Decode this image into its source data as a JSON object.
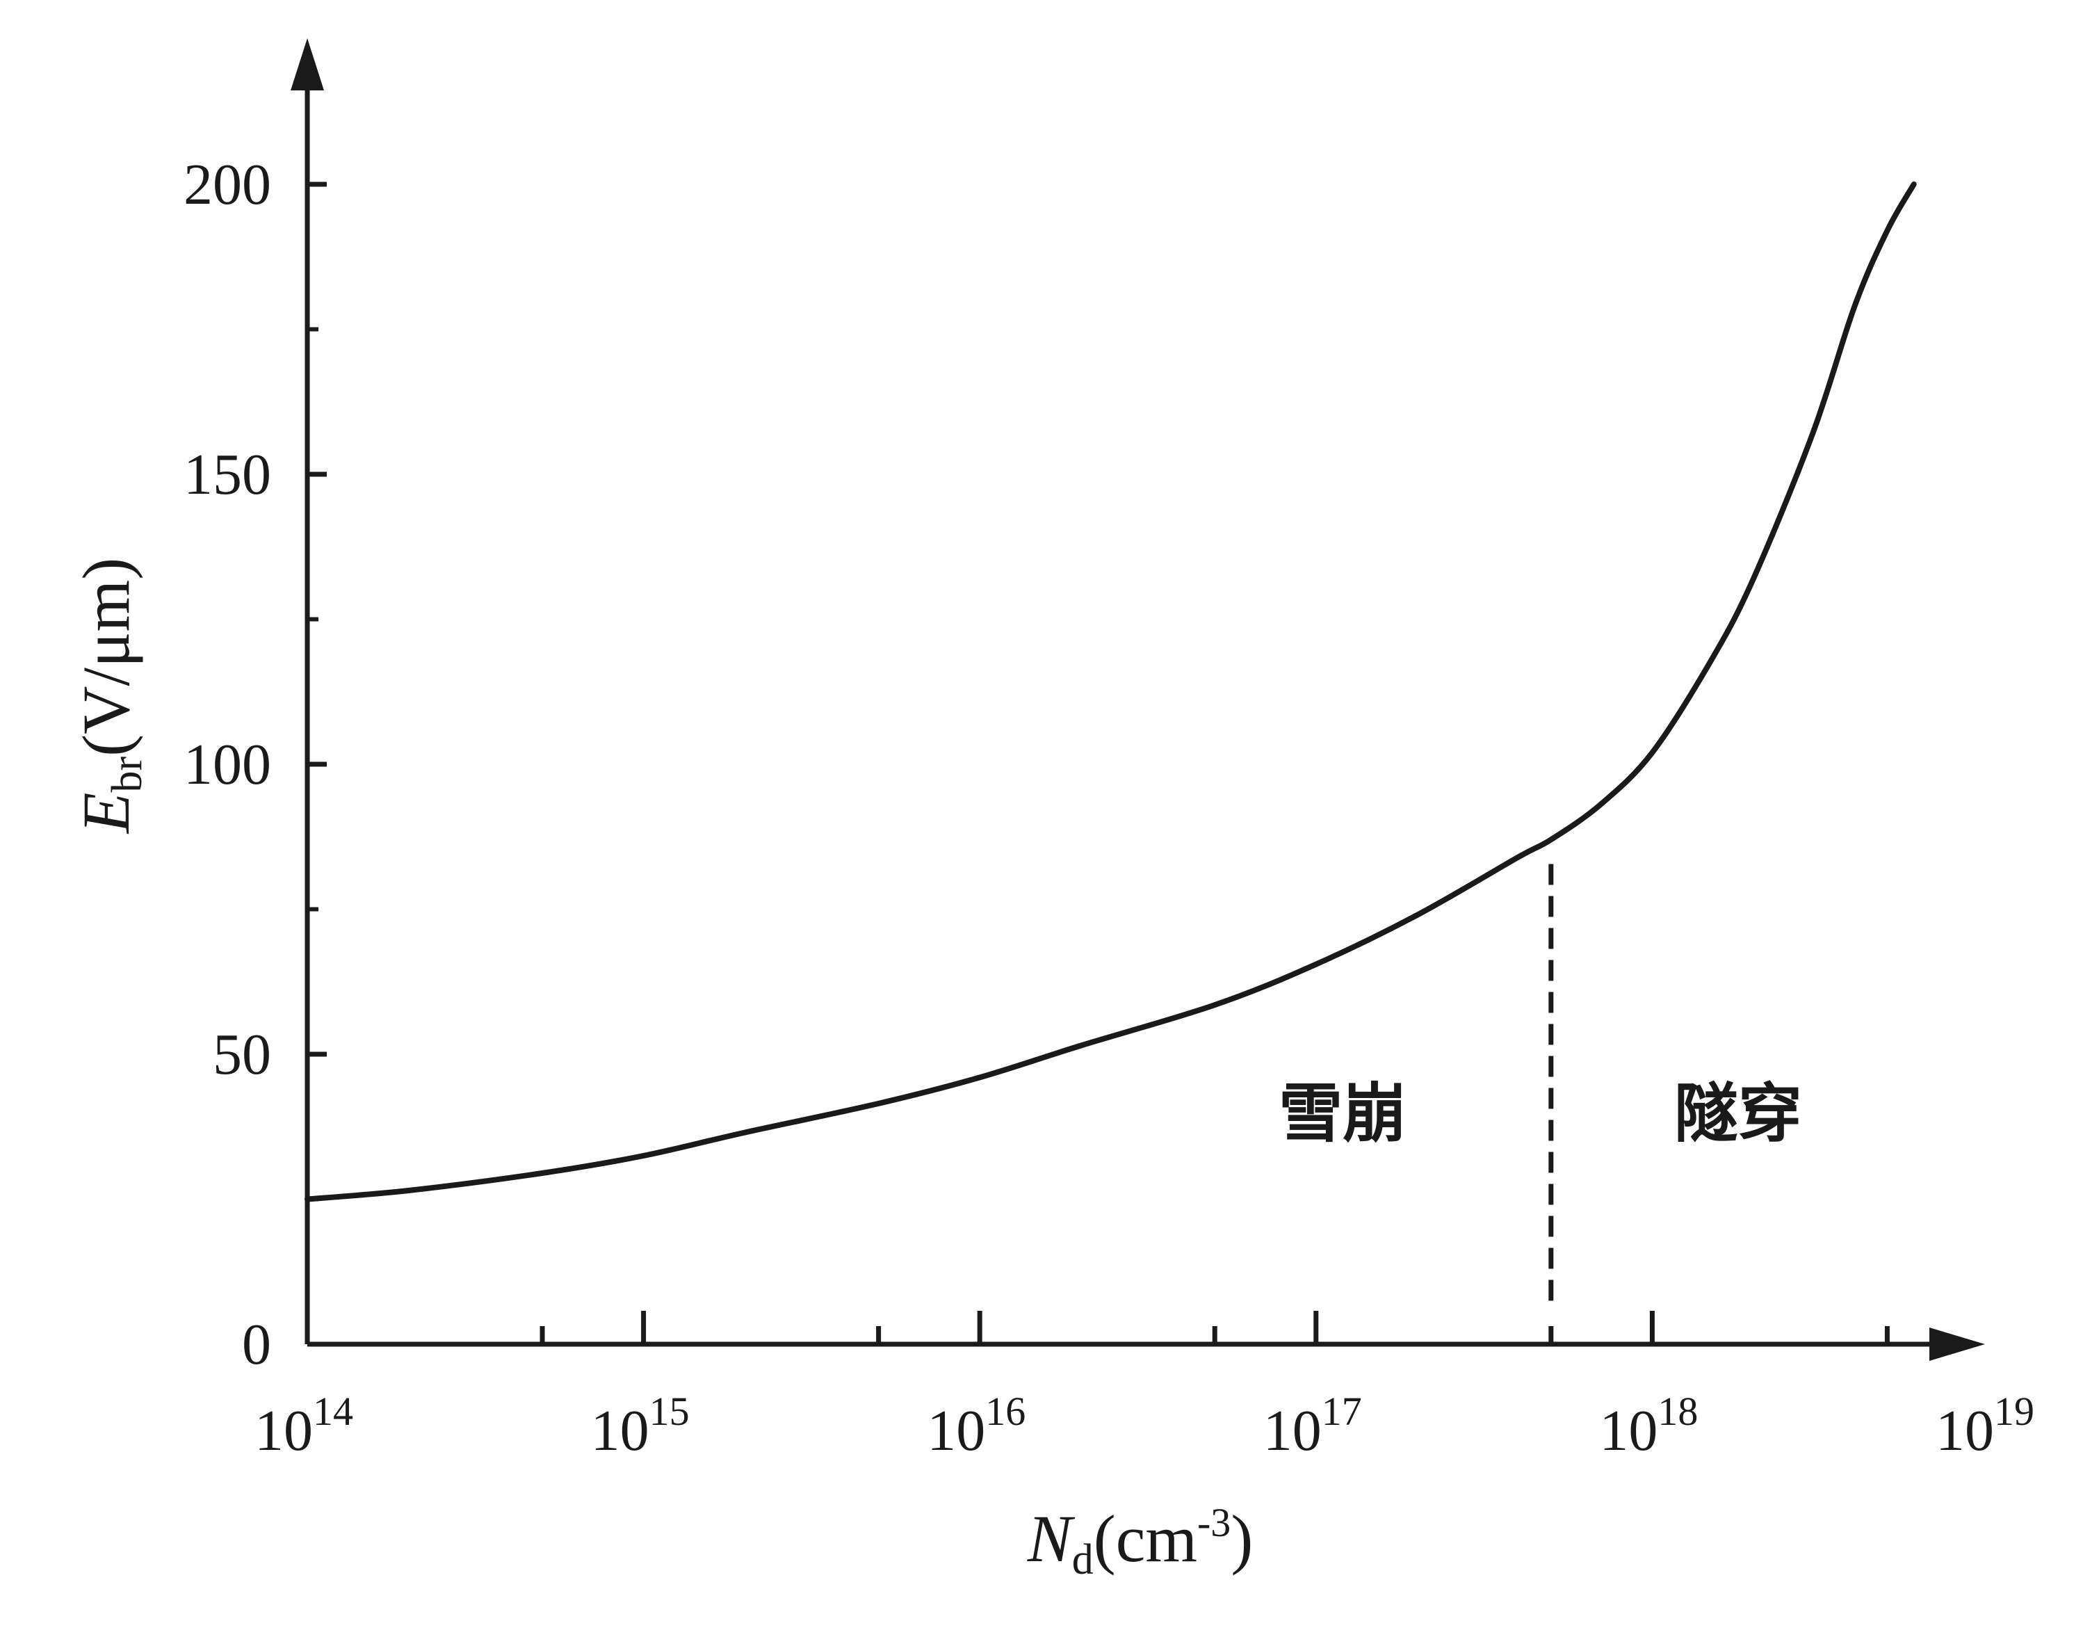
{
  "chart_data": {
    "type": "line",
    "title": "",
    "xscale": "log",
    "xlim": [
      100000000000000.0,
      1e+19
    ],
    "ylim": [
      0,
      220
    ],
    "xticks": [
      {
        "value": 100000000000000.0,
        "base": "10",
        "exp": "14"
      },
      {
        "value": 1000000000000000.0,
        "base": "10",
        "exp": "15"
      },
      {
        "value": 1e+16,
        "base": "10",
        "exp": "16"
      },
      {
        "value": 1e+17,
        "base": "10",
        "exp": "17"
      },
      {
        "value": 1e+18,
        "base": "10",
        "exp": "18"
      },
      {
        "value": 1e+19,
        "base": "10",
        "exp": "19"
      }
    ],
    "x_minor_ticks": [
      500000000000000.0,
      5000000000000000.0,
      5e+16,
      5e+17,
      5e+18
    ],
    "yticks": [
      {
        "value": 0,
        "label": "0"
      },
      {
        "value": 50,
        "label": "50"
      },
      {
        "value": 100,
        "label": "100"
      },
      {
        "value": 150,
        "label": "150"
      },
      {
        "value": 200,
        "label": "200"
      }
    ],
    "y_minor_ticks": [
      25,
      75,
      125,
      175
    ],
    "xlabel": {
      "main": "N",
      "sub": "d",
      "unit": "(cm",
      "sup": "-3",
      "close": ")"
    },
    "ylabel": {
      "main": "E",
      "sub": "br",
      "unit": "(V/μm)"
    },
    "series": [
      {
        "x": [
          100000000000000.0,
          200000000000000.0,
          500000000000000.0,
          1000000000000000.0,
          2000000000000000.0,
          5000000000000000.0,
          1e+16,
          2e+16,
          5e+16,
          1e+17,
          2e+17,
          4e+17,
          5e+17,
          7e+17,
          1e+18,
          1.5e+18,
          2e+18,
          3e+18,
          4e+18,
          5e+18,
          6e+18
        ],
        "y": [
          25,
          26.5,
          29.5,
          32.5,
          36.5,
          41.5,
          46,
          51.5,
          58.5,
          65.5,
          74,
          84,
          87,
          93,
          102,
          118,
          132,
          157,
          179,
          192,
          200
        ]
      }
    ],
    "boundary": {
      "x": 5e+17
    },
    "annotations": [
      {
        "text": "雪崩",
        "x": 1.2e+17,
        "y": 36
      },
      {
        "text": "隧穿",
        "x": 1.8e+18,
        "y": 36
      }
    ],
    "grid": false,
    "legend": "none"
  }
}
